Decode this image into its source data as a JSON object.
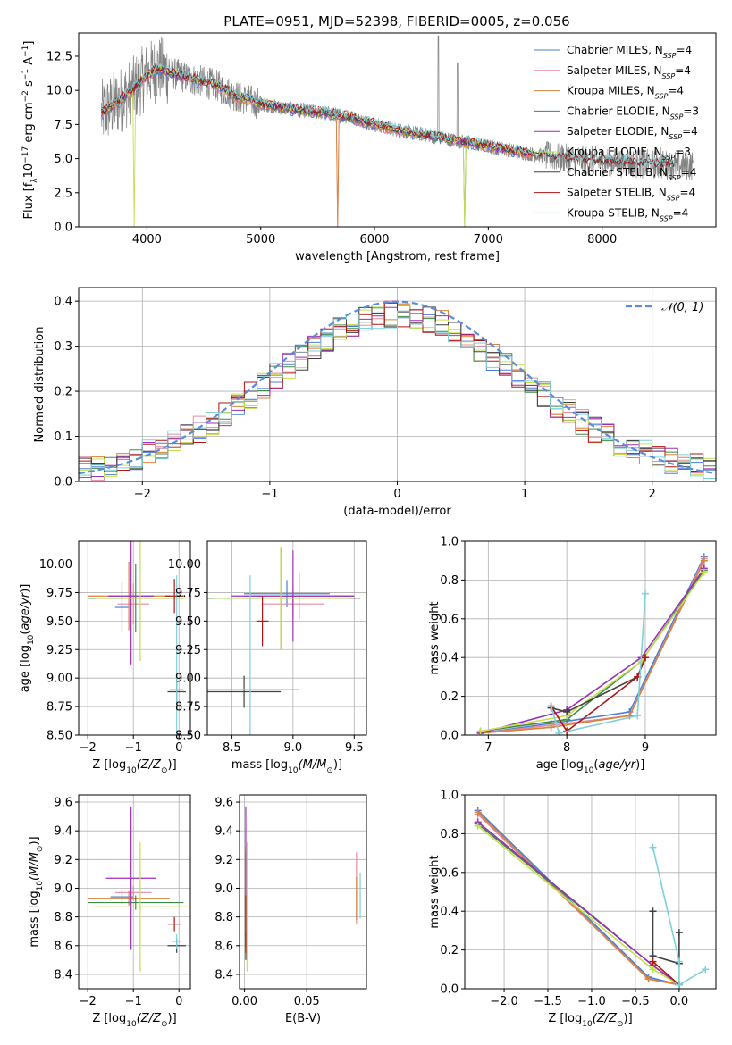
{
  "title": "PLATE=0951, MJD=52398, FIBERID=0005, z=0.056",
  "models": [
    {
      "name": "Chabrier MILES, N",
      "sub": "SSP",
      "suffix": "=4",
      "color": "#4a7fd6"
    },
    {
      "name": "Salpeter MILES, N",
      "sub": "SSP",
      "suffix": "=4",
      "color": "#e58aa0"
    },
    {
      "name": "Kroupa MILES, N",
      "sub": "SSP",
      "suffix": "=4",
      "color": "#d9823a"
    },
    {
      "name": "Chabrier ELODIE, N",
      "sub": "SSP",
      "suffix": "=3",
      "color": "#3f8a4a"
    },
    {
      "name": "Salpeter ELODIE, N",
      "sub": "SSP",
      "suffix": "=4",
      "color": "#9b2fb8"
    },
    {
      "name": "Kroupa ELODIE, N",
      "sub": "SSP",
      "suffix": "=3",
      "color": "#c5e04f"
    },
    {
      "name": "Chabrier STELIB, N",
      "sub": "SSP",
      "suffix": "=4",
      "color": "#404040"
    },
    {
      "name": "Salpeter STELIB, N",
      "sub": "SSP",
      "suffix": "=4",
      "color": "#b01515"
    },
    {
      "name": "Kroupa STELIB, N",
      "sub": "SSP",
      "suffix": "=4",
      "color": "#7fd0d8"
    }
  ],
  "chart_data": [
    {
      "id": "spectrum",
      "type": "line",
      "xlabel": "wavelength [Angstrom, rest frame]",
      "ylabel": "Flux [f",
      "ylabel_parts": [
        "Flux [f",
        "λ",
        "10",
        "−17",
        " erg cm",
        "−2",
        " s",
        "−1",
        " A",
        "−1",
        "]"
      ],
      "xlim": [
        3400,
        9000
      ],
      "ylim": [
        0,
        14.2
      ],
      "xticks": [
        4000,
        5000,
        6000,
        7000,
        8000
      ],
      "yticks": [
        0.0,
        2.5,
        5.0,
        7.5,
        10.0,
        12.5
      ],
      "data_color": "#808080",
      "model_continuum": [
        [
          3600,
          8.3
        ],
        [
          3700,
          8.9
        ],
        [
          3800,
          9.5
        ],
        [
          3900,
          10.2
        ],
        [
          4000,
          11.1
        ],
        [
          4100,
          11.6
        ],
        [
          4200,
          11.3
        ],
        [
          4400,
          10.8
        ],
        [
          4600,
          10.4
        ],
        [
          4800,
          9.5
        ],
        [
          5000,
          9.0
        ],
        [
          5200,
          8.7
        ],
        [
          5400,
          8.5
        ],
        [
          5600,
          8.3
        ],
        [
          5800,
          8.0
        ],
        [
          6000,
          7.5
        ],
        [
          6200,
          7.1
        ],
        [
          6400,
          6.8
        ],
        [
          6600,
          6.5
        ],
        [
          6800,
          6.2
        ],
        [
          7000,
          5.9
        ],
        [
          7200,
          5.6
        ],
        [
          7400,
          5.3
        ],
        [
          7600,
          5.1
        ],
        [
          7800,
          4.9
        ],
        [
          8000,
          4.8
        ],
        [
          8200,
          4.7
        ],
        [
          8400,
          4.6
        ],
        [
          8700,
          4.5
        ]
      ]
    },
    {
      "id": "residuals",
      "type": "histogram",
      "xlabel": "(data-model)/error",
      "ylabel": "Normed distribution",
      "xlim": [
        -2.5,
        2.5
      ],
      "ylim": [
        0,
        0.43
      ],
      "xticks": [
        -2,
        -1,
        0,
        1,
        2
      ],
      "yticks": [
        0.0,
        0.1,
        0.2,
        0.3,
        0.4
      ],
      "grid": true,
      "legend": {
        "label": "𝒩(0, 1)",
        "position": "top-right",
        "color": "#5b8bd9"
      },
      "bin_width": 0.1
    },
    {
      "id": "age-vs-Z",
      "type": "scatter",
      "xlabel": "Z [log",
      "xlabel_parts": [
        "Z [log",
        "10",
        "(Z/Z",
        "⊙",
        ")]"
      ],
      "ylabel_parts": [
        "age  [log",
        "10",
        "(",
        "age/yr",
        ")]"
      ],
      "xlim": [
        -2.2,
        0.25
      ],
      "ylim": [
        8.5,
        10.2
      ],
      "xticks": [
        -2,
        -1,
        0
      ],
      "yticks": [
        8.5,
        8.75,
        9.0,
        9.25,
        9.5,
        9.75,
        10.0
      ],
      "grid": true,
      "points": [
        {
          "x": -1.25,
          "y": 9.62,
          "xerr": 0.15,
          "yerr": 0.22,
          "model": 0
        },
        {
          "x": -1.0,
          "y": 9.65,
          "xerr": 0.35,
          "yerr": 0.18,
          "model": 1
        },
        {
          "x": -1.1,
          "y": 9.72,
          "xerr": 0.9,
          "yerr": 0.3,
          "model": 2
        },
        {
          "x": -0.95,
          "y": 9.7,
          "xerr": 1.05,
          "yerr": 0.3,
          "model": 3
        },
        {
          "x": -1.05,
          "y": 9.72,
          "xerr": 0.5,
          "yerr": 0.6,
          "model": 4
        },
        {
          "x": -0.85,
          "y": 9.7,
          "xerr": 1.0,
          "yerr": 0.55,
          "model": 5
        },
        {
          "x": -0.05,
          "y": 8.88,
          "xerr": 0.2,
          "yerr": 0.14,
          "model": 6
        },
        {
          "x": -0.1,
          "y": 9.72,
          "xerr": 0.2,
          "yerr": 0.15,
          "model": 7
        },
        {
          "x": -0.05,
          "y": 8.9,
          "xerr": 0.15,
          "yerr": 1.0,
          "model": 8
        }
      ]
    },
    {
      "id": "age-vs-mass",
      "type": "scatter",
      "xlabel_parts": [
        "mass [log",
        "10",
        "(M/M",
        "⊙",
        ")]"
      ],
      "xlim": [
        8.3,
        9.6
      ],
      "ylim": [
        8.5,
        10.2
      ],
      "xticks": [
        8.5,
        9.0,
        9.5
      ],
      "yticks": [
        8.5,
        8.75,
        9.0,
        9.25,
        9.5,
        9.75,
        10.0
      ],
      "grid": true,
      "points": [
        {
          "x": 8.95,
          "y": 9.74,
          "xerr": 0.35,
          "yerr": 0.12,
          "model": 0
        },
        {
          "x": 9.0,
          "y": 9.65,
          "xerr": 0.25,
          "yerr": 0.12,
          "model": 1
        },
        {
          "x": 9.05,
          "y": 9.72,
          "xerr": 0.45,
          "yerr": 0.2,
          "model": 2
        },
        {
          "x": 8.9,
          "y": 9.7,
          "xerr": 0.65,
          "yerr": 0.45,
          "model": 3
        },
        {
          "x": 9.0,
          "y": 9.72,
          "xerr": 0.5,
          "yerr": 0.4,
          "model": 4
        },
        {
          "x": 8.9,
          "y": 9.7,
          "xerr": 0.55,
          "yerr": 0.45,
          "model": 5
        },
        {
          "x": 8.6,
          "y": 8.88,
          "xerr": 0.3,
          "yerr": 0.14,
          "model": 6
        },
        {
          "x": 8.75,
          "y": 9.5,
          "xerr": 0.05,
          "yerr": 0.22,
          "model": 7
        },
        {
          "x": 8.65,
          "y": 8.9,
          "xerr": 0.4,
          "yerr": 1.0,
          "model": 8
        }
      ]
    },
    {
      "id": "massweight-vs-age",
      "type": "line",
      "xlabel_parts": [
        "age  [log",
        "10",
        "(",
        "age/yr",
        ")]"
      ],
      "ylabel": "mass weight",
      "xlim": [
        6.7,
        9.9
      ],
      "ylim": [
        0.0,
        1.0
      ],
      "xticks": [
        7,
        8,
        9
      ],
      "yticks": [
        0.0,
        0.2,
        0.4,
        0.6,
        0.8,
        1.0
      ],
      "grid": true,
      "series": [
        {
          "model": 0,
          "x": [
            6.9,
            7.8,
            8.8,
            9.75
          ],
          "y": [
            0.01,
            0.06,
            0.12,
            0.92
          ]
        },
        {
          "model": 1,
          "x": [
            6.9,
            7.8,
            8.8,
            9.75
          ],
          "y": [
            0.01,
            0.05,
            0.1,
            0.91
          ]
        },
        {
          "model": 2,
          "x": [
            6.9,
            7.8,
            8.8,
            9.75
          ],
          "y": [
            0.01,
            0.04,
            0.1,
            0.9
          ]
        },
        {
          "model": 3,
          "x": [
            6.9,
            8.0,
            8.95,
            9.75
          ],
          "y": [
            0.02,
            0.08,
            0.38,
            0.85
          ]
        },
        {
          "model": 4,
          "x": [
            6.9,
            8.0,
            8.95,
            9.75
          ],
          "y": [
            0.01,
            0.13,
            0.4,
            0.86
          ]
        },
        {
          "model": 5,
          "x": [
            6.9,
            8.0,
            8.95,
            9.75
          ],
          "y": [
            0.02,
            0.1,
            0.38,
            0.84
          ]
        },
        {
          "model": 6,
          "x": [
            7.8,
            8.0,
            8.9,
            9.0
          ],
          "y": [
            0.14,
            0.12,
            0.3,
            0.4
          ]
        },
        {
          "model": 7,
          "x": [
            7.8,
            8.0,
            8.9,
            9.0
          ],
          "y": [
            0.15,
            0.02,
            0.3,
            0.4
          ]
        },
        {
          "model": 8,
          "x": [
            7.8,
            7.9,
            8.9,
            9.0
          ],
          "y": [
            0.15,
            0.01,
            0.1,
            0.73
          ]
        }
      ]
    },
    {
      "id": "mass-vs-Z",
      "type": "scatter",
      "xlabel_parts": [
        "Z [log",
        "10",
        "(Z/Z",
        "⊙",
        ")]"
      ],
      "ylabel_parts": [
        "mass [log",
        "10",
        "(M/M",
        "⊙",
        ")]"
      ],
      "xlim": [
        -2.2,
        0.25
      ],
      "ylim": [
        8.3,
        9.65
      ],
      "xticks": [
        -2,
        -1,
        0
      ],
      "yticks": [
        8.4,
        8.6,
        8.8,
        9.0,
        9.2,
        9.4,
        9.6
      ],
      "grid": true,
      "points": [
        {
          "x": -1.25,
          "y": 8.94,
          "xerr": 0.25,
          "yerr": 0.05,
          "model": 0
        },
        {
          "x": -1.0,
          "y": 8.97,
          "xerr": 0.4,
          "yerr": 0.05,
          "model": 1
        },
        {
          "x": -1.1,
          "y": 8.93,
          "xerr": 0.9,
          "yerr": 0.05,
          "model": 2
        },
        {
          "x": -0.95,
          "y": 8.9,
          "xerr": 1.05,
          "yerr": 0.05,
          "model": 3
        },
        {
          "x": -1.05,
          "y": 9.07,
          "xerr": 0.55,
          "yerr": 0.5,
          "model": 4
        },
        {
          "x": -0.85,
          "y": 8.87,
          "xerr": 1.05,
          "yerr": 0.45,
          "model": 5
        },
        {
          "x": -0.05,
          "y": 8.6,
          "xerr": 0.2,
          "yerr": 0.05,
          "model": 6
        },
        {
          "x": -0.1,
          "y": 8.75,
          "xerr": 0.15,
          "yerr": 0.05,
          "model": 7
        },
        {
          "x": -0.05,
          "y": 8.63,
          "xerr": 0.1,
          "yerr": 0.05,
          "model": 8
        }
      ]
    },
    {
      "id": "mass-vs-ebv",
      "type": "scatter",
      "xlabel": "E(B-V)",
      "xlim": [
        -0.004,
        0.098
      ],
      "ylim": [
        8.3,
        9.65
      ],
      "xticks": [
        0.0,
        0.05
      ],
      "yticks": [
        8.4,
        8.6,
        8.8,
        9.0,
        9.2,
        9.4,
        9.6
      ],
      "grid": true,
      "points": [
        {
          "x": 0.001,
          "y": 8.94,
          "xerr": 0.0,
          "yerr": 0.35,
          "model": 0
        },
        {
          "x": 0.09,
          "y": 9.0,
          "xerr": 0.0,
          "yerr": 0.25,
          "model": 1
        },
        {
          "x": 0.09,
          "y": 8.93,
          "xerr": 0.0,
          "yerr": 0.15,
          "model": 2
        },
        {
          "x": 0.001,
          "y": 8.9,
          "xerr": 0.0,
          "yerr": 0.35,
          "model": 3
        },
        {
          "x": 0.001,
          "y": 9.07,
          "xerr": 0.0,
          "yerr": 0.5,
          "model": 4
        },
        {
          "x": 0.002,
          "y": 8.87,
          "xerr": 0.0,
          "yerr": 0.45,
          "model": 5
        },
        {
          "x": 0.001,
          "y": 8.6,
          "xerr": 0.0,
          "yerr": 0.1,
          "model": 6
        },
        {
          "x": 0.001,
          "y": 8.75,
          "xerr": 0.0,
          "yerr": 0.2,
          "model": 7
        },
        {
          "x": 0.093,
          "y": 8.95,
          "xerr": 0.0,
          "yerr": 0.16,
          "model": 8
        }
      ]
    },
    {
      "id": "massweight-vs-Z",
      "type": "line",
      "xlabel_parts": [
        "Z [log",
        "10",
        "(Z/Z",
        "⊙",
        ")]"
      ],
      "ylabel": "mass weight",
      "xlim": [
        -2.45,
        0.42
      ],
      "ylim": [
        0.0,
        1.0
      ],
      "xticks": [
        -2.0,
        -1.5,
        -1.0,
        -0.5,
        0.0
      ],
      "yticks": [
        0.0,
        0.2,
        0.4,
        0.6,
        0.8,
        1.0
      ],
      "grid": true,
      "series": [
        {
          "model": 0,
          "x": [
            -2.3,
            -0.35,
            0.0
          ],
          "y": [
            0.92,
            0.06,
            0.02
          ]
        },
        {
          "model": 1,
          "x": [
            -2.3,
            -0.35,
            0.0
          ],
          "y": [
            0.9,
            0.05,
            0.02
          ]
        },
        {
          "model": 2,
          "x": [
            -2.3,
            -0.35,
            0.0
          ],
          "y": [
            0.91,
            0.05,
            0.02
          ]
        },
        {
          "model": 3,
          "x": [
            -2.3,
            -0.3,
            0.0
          ],
          "y": [
            0.85,
            0.12,
            0.02
          ]
        },
        {
          "model": 4,
          "x": [
            -2.3,
            -0.3,
            0.0
          ],
          "y": [
            0.86,
            0.12,
            0.02
          ]
        },
        {
          "model": 5,
          "x": [
            -2.3,
            -0.3,
            0.0
          ],
          "y": [
            0.84,
            0.1,
            0.02
          ]
        },
        {
          "model": 6,
          "x": [
            -0.3,
            -0.3,
            0.0,
            0.0
          ],
          "y": [
            0.4,
            0.17,
            0.13,
            0.29
          ]
        },
        {
          "model": 7,
          "x": [
            -0.3,
            0.0
          ],
          "y": [
            0.14,
            0.02
          ]
        },
        {
          "model": 8,
          "x": [
            -0.3,
            0.0,
            0.0,
            0.3
          ],
          "y": [
            0.73,
            0.14,
            0.02,
            0.1
          ]
        }
      ]
    }
  ]
}
